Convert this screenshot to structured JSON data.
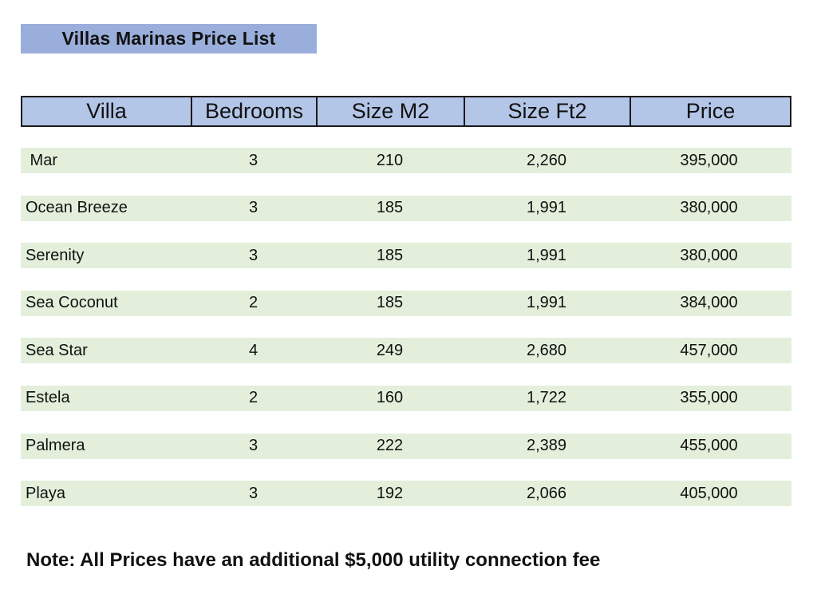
{
  "title": "Villas Marinas Price List",
  "table": {
    "headers": [
      "Villa",
      "Bedrooms",
      "Size M2",
      "Size Ft2",
      "Price"
    ],
    "rows": [
      {
        "villa": " Mar",
        "bedrooms": "3",
        "size_m2": "210",
        "size_ft2": "2,260",
        "price": "395,000"
      },
      {
        "villa": "Ocean Breeze",
        "bedrooms": "3",
        "size_m2": "185",
        "size_ft2": "1,991",
        "price": "380,000"
      },
      {
        "villa": "Serenity",
        "bedrooms": "3",
        "size_m2": "185",
        "size_ft2": "1,991",
        "price": "380,000"
      },
      {
        "villa": "Sea Coconut",
        "bedrooms": "2",
        "size_m2": "185",
        "size_ft2": "1,991",
        "price": "384,000"
      },
      {
        "villa": "Sea Star",
        "bedrooms": "4",
        "size_m2": "249",
        "size_ft2": "2,680",
        "price": "457,000"
      },
      {
        "villa": "Estela",
        "bedrooms": "2",
        "size_m2": "160",
        "size_ft2": "1,722",
        "price": "355,000"
      },
      {
        "villa": "Palmera",
        "bedrooms": "3",
        "size_m2": "222",
        "size_ft2": "2,389",
        "price": "455,000"
      },
      {
        "villa": "Playa",
        "bedrooms": "3",
        "size_m2": "192",
        "size_ft2": "2,066",
        "price": "405,000"
      }
    ]
  },
  "note": "Note: All Prices have an additional $5,000 utility connection fee",
  "colors": {
    "title_bg": "#9aaedb",
    "header_bg": "#b4c6e7",
    "row_bg": "#e3efdb"
  }
}
